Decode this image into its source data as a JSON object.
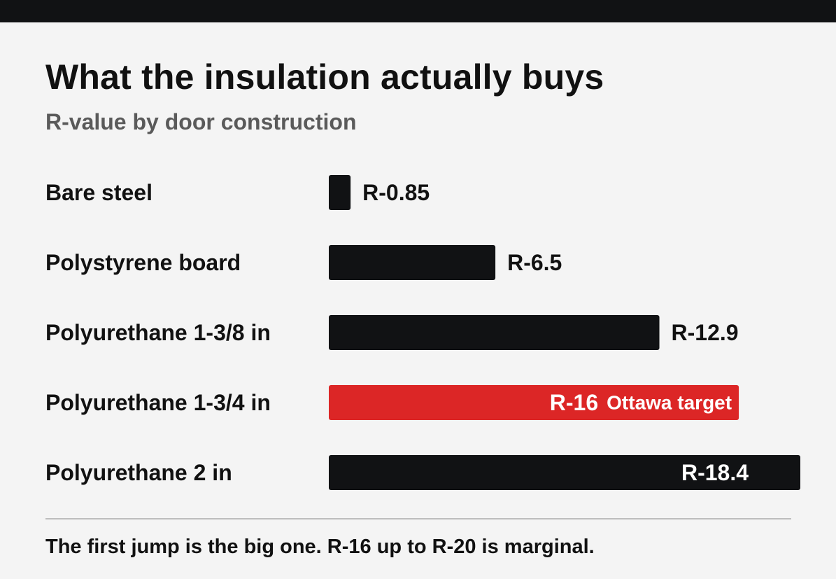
{
  "colors": {
    "background": "#f4f4f4",
    "bar": "#111214",
    "highlight": "#dc2626",
    "text": "#111111",
    "subtitle": "#5a5a5a"
  },
  "chart_data": {
    "type": "bar",
    "orientation": "horizontal",
    "title": "What the insulation actually buys",
    "subtitle": "R-value by door construction",
    "categories": [
      "Bare steel",
      "Polystyrene board",
      "Polyurethane 1-3/8 in",
      "Polyurethane 1-3/4 in",
      "Polyurethane 2 in"
    ],
    "values": [
      0.85,
      6.5,
      12.9,
      16,
      18.4
    ],
    "value_labels": [
      "R-0.85",
      "R-6.5",
      "R-12.9",
      "R-16",
      "R-18.4"
    ],
    "highlight_index": 3,
    "annotations": [
      {
        "category": "Polyurethane 1-3/4 in",
        "text": "Ottawa target"
      }
    ],
    "xlim": [
      0,
      18.4
    ],
    "grid": false
  },
  "footer": {
    "note": "The first jump is the big one. R-16 up to R-20 is marginal."
  }
}
